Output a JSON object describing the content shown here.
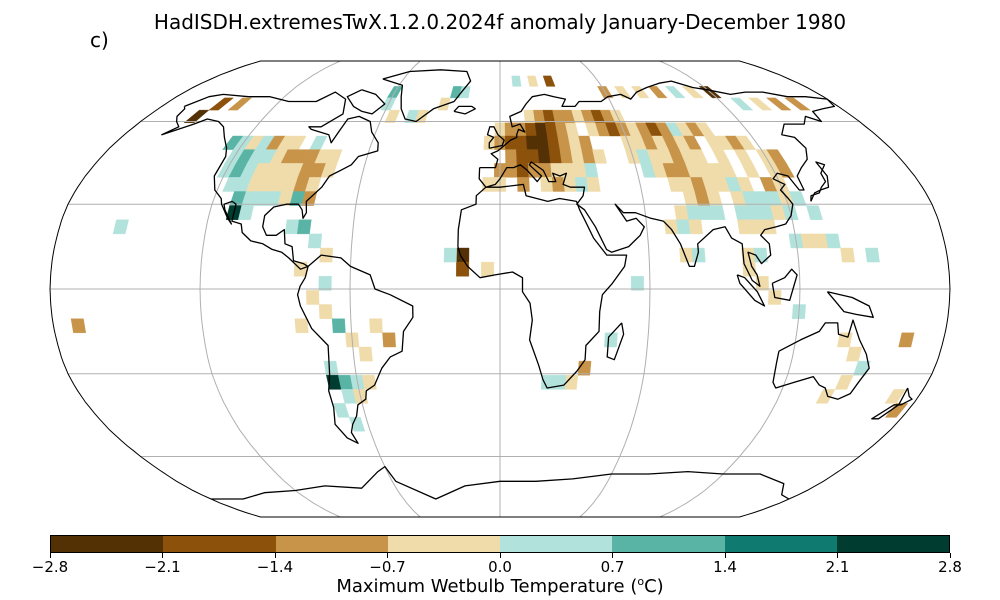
{
  "panel_label": "c)",
  "title": "HadISDH.extremesTwX.1.2.0.2024f anomaly January-December 1980",
  "colorbar": {
    "label": "Maximum Wetbulb Temperature (",
    "label_unit_sup": "o",
    "label_unit_tail": "C)",
    "ticks": [
      "−2.8",
      "−2.1",
      "−1.4",
      "−0.7",
      "0.0",
      "0.7",
      "1.4",
      "2.1",
      "2.8"
    ],
    "colors": [
      "#543005",
      "#8c510a",
      "#c7944a",
      "#f0dcaa",
      "#b2e2dc",
      "#5ab4a6",
      "#0f7a70",
      "#003c30"
    ]
  },
  "map_data": {
    "projection": "Robinson",
    "gridlines": true,
    "cell_size_deg": 5,
    "cells": [
      [
        -155,
        62,
        0
      ],
      [
        -150,
        67,
        1
      ],
      [
        -140,
        67,
        2
      ],
      [
        -125,
        52,
        5
      ],
      [
        -120,
        52,
        4
      ],
      [
        -115,
        52,
        3
      ],
      [
        -110,
        52,
        4
      ],
      [
        -105,
        52,
        2
      ],
      [
        -100,
        52,
        3
      ],
      [
        -95,
        52,
        3
      ],
      [
        -85,
        52,
        4
      ],
      [
        -120,
        47,
        4
      ],
      [
        -115,
        47,
        5
      ],
      [
        -110,
        47,
        4
      ],
      [
        -105,
        47,
        4
      ],
      [
        -100,
        47,
        3
      ],
      [
        -95,
        47,
        2
      ],
      [
        -90,
        47,
        2
      ],
      [
        -85,
        47,
        2
      ],
      [
        -80,
        47,
        3
      ],
      [
        -75,
        47,
        3
      ],
      [
        -120,
        42,
        4
      ],
      [
        -115,
        42,
        5
      ],
      [
        -110,
        42,
        4
      ],
      [
        -105,
        42,
        3
      ],
      [
        -100,
        42,
        3
      ],
      [
        -95,
        42,
        3
      ],
      [
        -90,
        42,
        3
      ],
      [
        -85,
        42,
        2
      ],
      [
        -80,
        42,
        2
      ],
      [
        -75,
        42,
        3
      ],
      [
        -115,
        37,
        4
      ],
      [
        -110,
        37,
        4
      ],
      [
        -105,
        37,
        3
      ],
      [
        -100,
        37,
        3
      ],
      [
        -95,
        37,
        3
      ],
      [
        -90,
        37,
        3
      ],
      [
        -85,
        37,
        2
      ],
      [
        -80,
        37,
        3
      ],
      [
        -110,
        32,
        5
      ],
      [
        -105,
        32,
        4
      ],
      [
        -100,
        32,
        4
      ],
      [
        -95,
        32,
        4
      ],
      [
        -90,
        32,
        3
      ],
      [
        -85,
        32,
        5
      ],
      [
        -80,
        32,
        2
      ],
      [
        -110,
        27,
        7
      ],
      [
        -105,
        27,
        4
      ],
      [
        -85,
        22,
        4
      ],
      [
        -80,
        22,
        5
      ],
      [
        -155,
        22,
        4
      ],
      [
        -75,
        17,
        4
      ],
      [
        -70,
        12,
        3
      ],
      [
        -80,
        7,
        3
      ],
      [
        -70,
        2,
        4
      ],
      [
        -75,
        -3,
        3
      ],
      [
        -70,
        -8,
        3
      ],
      [
        -80,
        -13,
        3
      ],
      [
        -65,
        -13,
        5
      ],
      [
        -60,
        -18,
        3
      ],
      [
        -55,
        -23,
        3
      ],
      [
        -50,
        -13,
        3
      ],
      [
        -45,
        -18,
        2
      ],
      [
        -70,
        -28,
        4
      ],
      [
        -70,
        -33,
        7
      ],
      [
        -65,
        -33,
        5
      ],
      [
        -60,
        -33,
        4
      ],
      [
        -55,
        -33,
        3
      ],
      [
        -65,
        -38,
        4
      ],
      [
        -60,
        -38,
        3
      ],
      [
        -70,
        -43,
        4
      ],
      [
        -65,
        -48,
        4
      ],
      [
        -170,
        -13,
        2
      ],
      [
        -15,
        12,
        0
      ],
      [
        -15,
        7,
        1
      ],
      [
        -5,
        7,
        3
      ],
      [
        -20,
        12,
        4
      ],
      [
        0,
        57,
        3
      ],
      [
        5,
        57,
        2
      ],
      [
        10,
        57,
        2
      ],
      [
        15,
        57,
        1
      ],
      [
        20,
        57,
        0
      ],
      [
        25,
        57,
        1
      ],
      [
        30,
        57,
        2
      ],
      [
        35,
        57,
        3
      ],
      [
        -5,
        52,
        3
      ],
      [
        0,
        52,
        2
      ],
      [
        5,
        52,
        1
      ],
      [
        10,
        52,
        1
      ],
      [
        15,
        52,
        0
      ],
      [
        20,
        52,
        0
      ],
      [
        25,
        52,
        1
      ],
      [
        30,
        52,
        2
      ],
      [
        35,
        52,
        3
      ],
      [
        40,
        52,
        2
      ],
      [
        5,
        47,
        2
      ],
      [
        10,
        47,
        1
      ],
      [
        15,
        47,
        1
      ],
      [
        20,
        47,
        0
      ],
      [
        25,
        47,
        1
      ],
      [
        30,
        47,
        2
      ],
      [
        35,
        47,
        3
      ],
      [
        40,
        47,
        2
      ],
      [
        45,
        47,
        3
      ],
      [
        0,
        42,
        2
      ],
      [
        5,
        42,
        2
      ],
      [
        10,
        42,
        1
      ],
      [
        15,
        42,
        2
      ],
      [
        20,
        42,
        2
      ],
      [
        25,
        42,
        3
      ],
      [
        30,
        42,
        3
      ],
      [
        35,
        42,
        3
      ],
      [
        40,
        42,
        4
      ],
      [
        -5,
        37,
        3
      ],
      [
        0,
        37,
        3
      ],
      [
        10,
        37,
        2
      ],
      [
        20,
        37,
        3
      ],
      [
        25,
        37,
        2
      ],
      [
        30,
        37,
        3
      ],
      [
        35,
        37,
        4
      ],
      [
        40,
        37,
        3
      ],
      [
        15,
        62,
        3
      ],
      [
        20,
        62,
        2
      ],
      [
        25,
        62,
        1
      ],
      [
        30,
        62,
        2
      ],
      [
        35,
        62,
        2
      ],
      [
        40,
        62,
        3
      ],
      [
        45,
        62,
        2
      ],
      [
        50,
        62,
        1
      ],
      [
        55,
        62,
        2
      ],
      [
        60,
        62,
        3
      ],
      [
        45,
        57,
        3
      ],
      [
        50,
        57,
        2
      ],
      [
        55,
        57,
        1
      ],
      [
        60,
        57,
        2
      ],
      [
        65,
        57,
        3
      ],
      [
        70,
        57,
        2
      ],
      [
        75,
        57,
        1
      ],
      [
        80,
        57,
        2
      ],
      [
        85,
        57,
        4
      ],
      [
        90,
        57,
        3
      ],
      [
        95,
        57,
        2
      ],
      [
        100,
        57,
        3
      ],
      [
        60,
        52,
        3
      ],
      [
        65,
        52,
        3
      ],
      [
        70,
        52,
        2
      ],
      [
        75,
        52,
        3
      ],
      [
        80,
        52,
        2
      ],
      [
        85,
        52,
        3
      ],
      [
        90,
        52,
        2
      ],
      [
        100,
        52,
        3
      ],
      [
        105,
        52,
        3
      ],
      [
        110,
        52,
        2
      ],
      [
        115,
        52,
        3
      ],
      [
        60,
        47,
        3
      ],
      [
        65,
        47,
        4
      ],
      [
        70,
        47,
        3
      ],
      [
        75,
        47,
        3
      ],
      [
        80,
        47,
        2
      ],
      [
        85,
        47,
        3
      ],
      [
        90,
        47,
        3
      ],
      [
        100,
        47,
        3
      ],
      [
        110,
        47,
        3
      ],
      [
        120,
        47,
        3
      ],
      [
        125,
        47,
        2
      ],
      [
        65,
        42,
        4
      ],
      [
        70,
        42,
        3
      ],
      [
        75,
        42,
        2
      ],
      [
        80,
        42,
        2
      ],
      [
        85,
        42,
        3
      ],
      [
        90,
        42,
        3
      ],
      [
        95,
        42,
        3
      ],
      [
        100,
        42,
        3
      ],
      [
        110,
        42,
        3
      ],
      [
        120,
        42,
        3
      ],
      [
        125,
        42,
        2
      ],
      [
        75,
        37,
        3
      ],
      [
        80,
        37,
        3
      ],
      [
        85,
        37,
        2
      ],
      [
        90,
        37,
        3
      ],
      [
        95,
        37,
        3
      ],
      [
        100,
        37,
        4
      ],
      [
        105,
        37,
        3
      ],
      [
        115,
        37,
        2
      ],
      [
        120,
        37,
        3
      ],
      [
        80,
        32,
        3
      ],
      [
        85,
        32,
        2
      ],
      [
        90,
        32,
        3
      ],
      [
        100,
        32,
        3
      ],
      [
        105,
        32,
        4
      ],
      [
        110,
        32,
        4
      ],
      [
        115,
        32,
        4
      ],
      [
        120,
        32,
        3
      ],
      [
        125,
        32,
        4
      ],
      [
        75,
        27,
        3
      ],
      [
        80,
        27,
        4
      ],
      [
        85,
        27,
        4
      ],
      [
        90,
        27,
        4
      ],
      [
        100,
        27,
        4
      ],
      [
        105,
        27,
        4
      ],
      [
        110,
        27,
        4
      ],
      [
        115,
        27,
        3
      ],
      [
        120,
        27,
        4
      ],
      [
        130,
        27,
        4
      ],
      [
        70,
        22,
        3
      ],
      [
        75,
        22,
        4
      ],
      [
        80,
        22,
        3
      ],
      [
        100,
        22,
        3
      ],
      [
        105,
        22,
        3
      ],
      [
        110,
        22,
        3
      ],
      [
        120,
        17,
        4
      ],
      [
        125,
        17,
        3
      ],
      [
        130,
        17,
        3
      ],
      [
        135,
        17,
        4
      ],
      [
        140,
        12,
        3
      ],
      [
        150,
        12,
        4
      ],
      [
        75,
        12,
        3
      ],
      [
        80,
        12,
        4
      ],
      [
        100,
        12,
        3
      ],
      [
        105,
        12,
        4
      ],
      [
        100,
        7,
        3
      ],
      [
        105,
        2,
        3
      ],
      [
        110,
        -3,
        3
      ],
      [
        120,
        -8,
        4
      ],
      [
        55,
        2,
        4
      ],
      [
        35,
        -28,
        2
      ],
      [
        30,
        -33,
        3
      ],
      [
        20,
        -33,
        4
      ],
      [
        25,
        -33,
        4
      ],
      [
        45,
        -18,
        4
      ],
      [
        140,
        -18,
        3
      ],
      [
        145,
        -23,
        3
      ],
      [
        150,
        -28,
        4
      ],
      [
        145,
        -33,
        3
      ],
      [
        140,
        -38,
        3
      ],
      [
        170,
        -38,
        3
      ],
      [
        175,
        -43,
        2
      ],
      [
        165,
        -18,
        2
      ],
      [
        -60,
        72,
        5
      ],
      [
        -60,
        67,
        4
      ],
      [
        -55,
        62,
        3
      ],
      [
        -45,
        62,
        4
      ],
      [
        -40,
        62,
        3
      ],
      [
        -30,
        67,
        3
      ],
      [
        -25,
        72,
        5
      ],
      [
        -20,
        72,
        4
      ],
      [
        10,
        77,
        4
      ],
      [
        20,
        77,
        3
      ],
      [
        30,
        77,
        1
      ],
      [
        60,
        72,
        2
      ],
      [
        70,
        72,
        3
      ],
      [
        80,
        72,
        3
      ],
      [
        90,
        72,
        2
      ],
      [
        100,
        72,
        4
      ],
      [
        110,
        72,
        3
      ],
      [
        120,
        72,
        0
      ],
      [
        130,
        67,
        4
      ],
      [
        140,
        67,
        3
      ],
      [
        150,
        67,
        2
      ],
      [
        160,
        67,
        2
      ]
    ]
  }
}
